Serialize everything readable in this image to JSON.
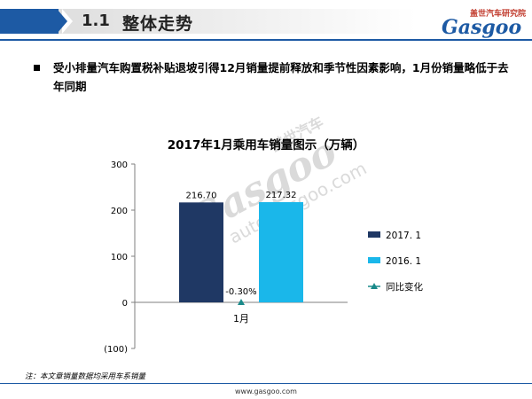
{
  "header": {
    "section_number": "1.1",
    "section_title": "整体走势",
    "logo_cn": "盖世汽车研究院",
    "logo_en": "Gasgoo"
  },
  "bullet": {
    "text": "受小排量汽车购置税补贴退坡引得12月销量提前释放和季节性因素影响，1月份销量略低于去年同期"
  },
  "watermark": {
    "main": "Gasgoo",
    "cn": "盖世汽车",
    "url": "auto.gasgoo.com"
  },
  "footnote": "注：本文章销量数据均采用车系销量",
  "footer_url": "www.gasgoo.com",
  "colors": {
    "brand_blue": "#1d5aa4",
    "series_2017": "#1f3864",
    "series_2016": "#1ab7ea",
    "series_yoy": "#1a8a8a"
  },
  "chart_data": {
    "type": "bar",
    "title": "2017年1月乘用车销量图示（万辆）",
    "categories": [
      "1月"
    ],
    "ylim": [
      -100,
      300
    ],
    "yticks": [
      -100,
      0,
      100,
      200,
      300
    ],
    "ytick_labels": [
      "(100)",
      "0",
      "100",
      "200",
      "300"
    ],
    "grid": false,
    "legend_position": "right",
    "series": [
      {
        "name": "2017. 1",
        "kind": "bar",
        "values": [
          216.7
        ],
        "labels": [
          "216.70"
        ]
      },
      {
        "name": "2016. 1",
        "kind": "bar",
        "values": [
          217.32
        ],
        "labels": [
          "217.32"
        ]
      },
      {
        "name": "同比变化",
        "kind": "line-marker",
        "values": [
          -0.3
        ],
        "labels": [
          "-0.30%"
        ]
      }
    ]
  }
}
